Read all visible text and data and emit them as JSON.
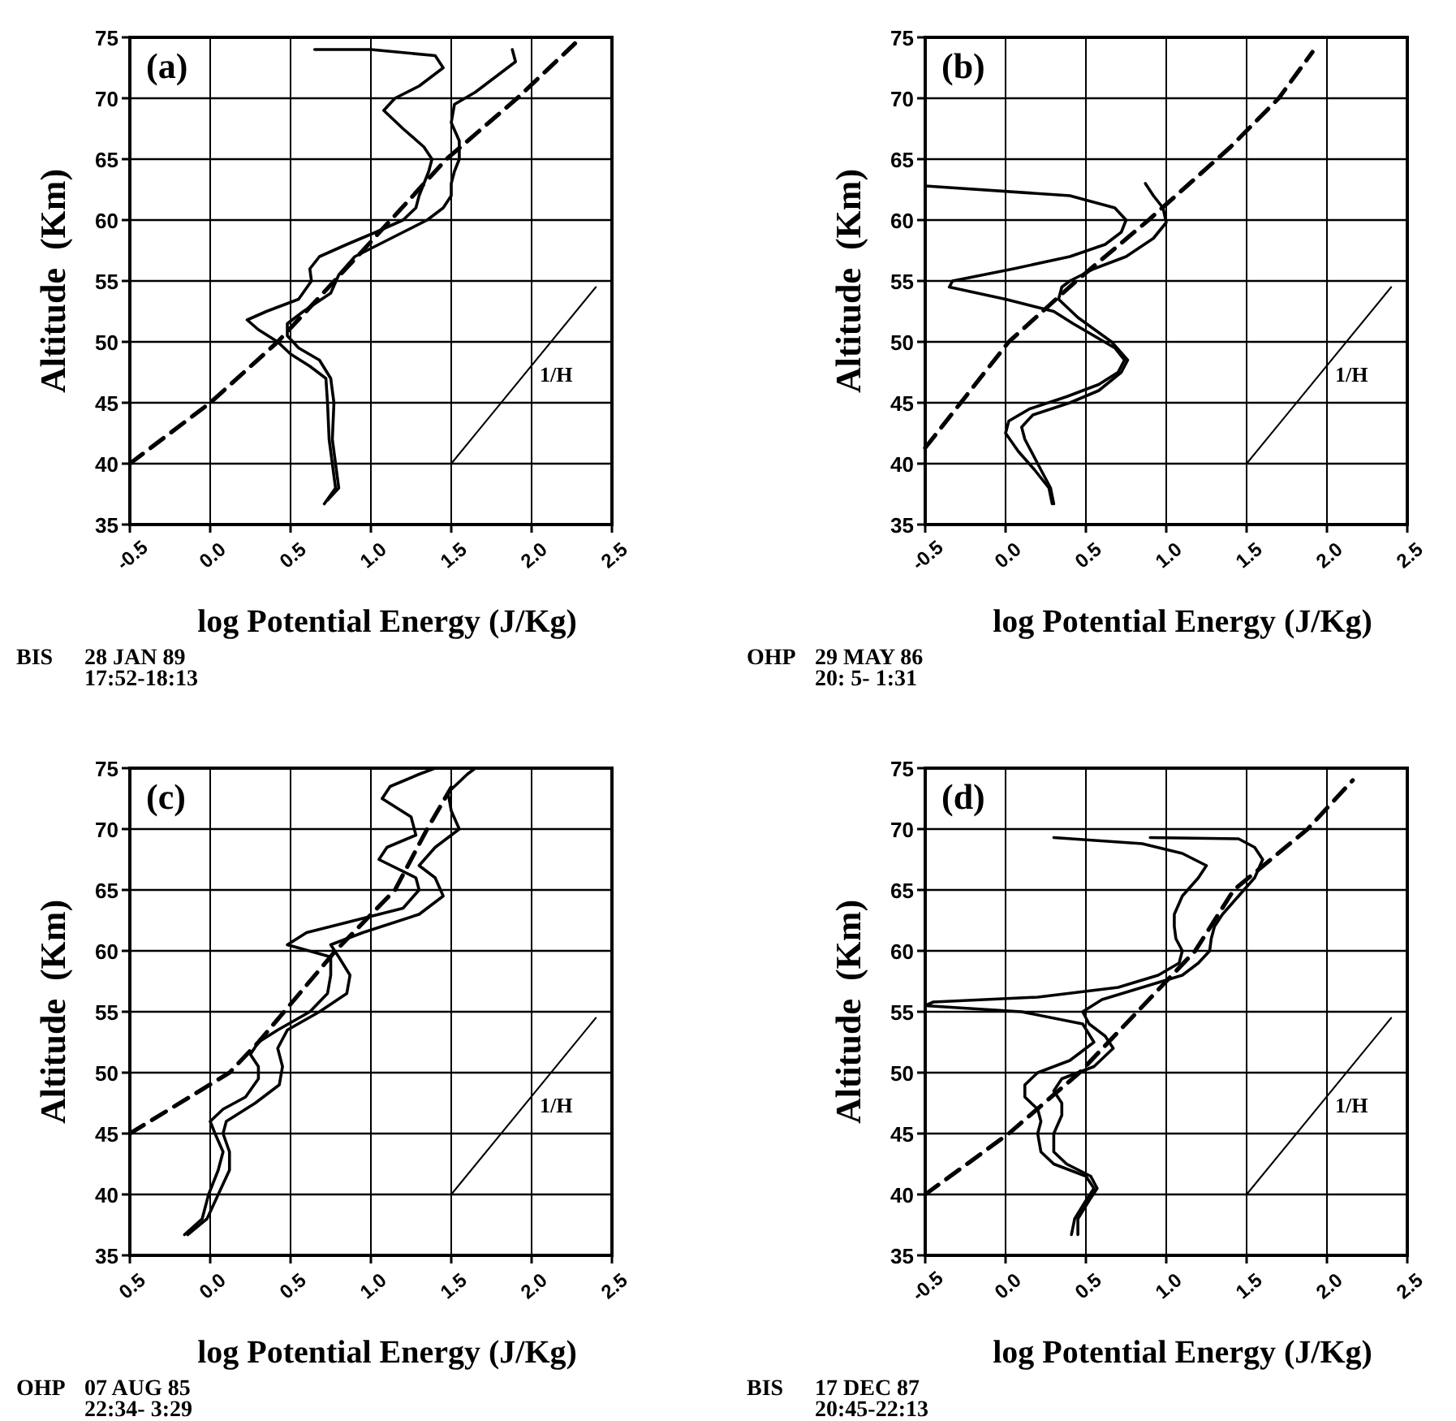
{
  "chart_data": [
    {
      "type": "line",
      "title": "(a)",
      "xlabel": "log Potential Energy (J/Kg)",
      "ylabel": "Altitude  (Km)",
      "xlim": [
        -0.5,
        2.5
      ],
      "ylim": [
        35,
        75
      ],
      "xticks": [
        -0.5,
        {
          "value": 0,
          "label": "0.0"
        },
        0.5,
        {
          "value": 1,
          "label": "1.0"
        },
        1.5,
        {
          "value": 2,
          "label": "2.0"
        },
        2.5
      ],
      "yticks": [
        35,
        40,
        45,
        50,
        55,
        60,
        65,
        70,
        75
      ],
      "grid": true,
      "annotations": [
        "BIS",
        "28 JAN 89",
        "17:52-18:13"
      ],
      "series": [
        {
          "color": "#000000",
          "line_style": "solid",
          "x": [
            0.71,
            0.78,
            0.76,
            0.74,
            0.73,
            0.72,
            0.62,
            0.5,
            0.42,
            0.3,
            0.23,
            0.35,
            0.55,
            0.63,
            0.62,
            0.68,
            0.85,
            1.03,
            1.2,
            1.28,
            1.3,
            1.33,
            1.36,
            1.38,
            1.33,
            1.2,
            1.08,
            1.15,
            1.3,
            1.45,
            1.4,
            1.0,
            0.65
          ],
          "values": [
            36.7,
            38,
            40,
            42,
            45,
            47,
            48,
            49,
            50,
            51,
            51.8,
            52.5,
            53.5,
            55,
            56,
            57,
            58,
            59,
            60,
            61,
            62,
            63,
            64,
            65,
            66,
            67.5,
            69,
            70,
            71,
            72.5,
            73.5,
            74,
            74
          ]
        },
        {
          "color": "#000000",
          "line_style": "solid",
          "x": [
            0.73,
            0.8,
            0.78,
            0.76,
            0.77,
            0.75,
            0.68,
            0.55,
            0.48,
            0.48,
            0.58,
            0.75,
            0.8,
            0.9,
            1.05,
            1.2,
            1.35,
            1.45,
            1.5,
            1.5,
            1.52,
            1.55,
            1.55,
            1.5,
            1.52,
            1.65,
            1.8,
            1.9,
            1.88
          ],
          "values": [
            37,
            38,
            40,
            42,
            45,
            47,
            48.5,
            49.5,
            50.5,
            51.5,
            52.5,
            54,
            55.5,
            57,
            58,
            59,
            60,
            61,
            62,
            63,
            64,
            65,
            66.5,
            68,
            69.5,
            70.5,
            72,
            73,
            74
          ]
        },
        {
          "color": "#000000",
          "line_style": "dashed",
          "x": [
            -0.5,
            0.0,
            0.42,
            0.95,
            1.47,
            1.91,
            2.27
          ],
          "values": [
            40,
            45,
            50,
            57.5,
            65,
            70,
            74.5
          ]
        },
        {
          "name": "1/H",
          "color": "#000000",
          "line_style": "solid",
          "x": [
            1.5,
            2.4
          ],
          "values": [
            40,
            54.5
          ]
        }
      ]
    },
    {
      "type": "line",
      "title": "(b)",
      "xlabel": "log Potential Energy (J/Kg)",
      "ylabel": "Altitude  (Km)",
      "xlim": [
        -0.5,
        2.5
      ],
      "ylim": [
        35,
        75
      ],
      "xticks": [
        -0.5,
        {
          "value": 0,
          "label": "0.0"
        },
        0.5,
        {
          "value": 1,
          "label": "1.0"
        },
        1.5,
        {
          "value": 2,
          "label": "2.0"
        },
        2.5
      ],
      "yticks": [
        35,
        40,
        45,
        50,
        55,
        60,
        65,
        70,
        75
      ],
      "grid": true,
      "annotations": [
        "OHP",
        "29 MAY 86",
        "20: 5- 1:31"
      ],
      "series": [
        {
          "color": "#000000",
          "line_style": "solid",
          "x": [
            0.29,
            0.27,
            0.18,
            0.08,
            0.0,
            0.02,
            0.15,
            0.38,
            0.58,
            0.7,
            0.74,
            0.68,
            0.55,
            0.42,
            0.3,
            0.0,
            -0.35,
            -0.33,
            0.05,
            0.4,
            0.62,
            0.72,
            0.75,
            0.68,
            0.4,
            -0.5
          ],
          "values": [
            36.7,
            38,
            39.5,
            41,
            42.5,
            43.5,
            44.5,
            45.5,
            46.5,
            47.5,
            48.5,
            49.5,
            50.5,
            51.5,
            52.5,
            53.5,
            54.5,
            55,
            56,
            57,
            58,
            59,
            60,
            61,
            62,
            62.8
          ]
        },
        {
          "color": "#000000",
          "line_style": "solid",
          "x": [
            0.3,
            0.28,
            0.2,
            0.12,
            0.1,
            0.17,
            0.4,
            0.58,
            0.72,
            0.76,
            0.66,
            0.45,
            0.33,
            0.35,
            0.4,
            0.55,
            0.75,
            0.92,
            1.0,
            0.98,
            0.92,
            0.87
          ],
          "values": [
            36.7,
            38,
            40,
            42,
            43,
            44,
            45,
            46,
            47.5,
            48.5,
            50,
            52,
            53.5,
            54.5,
            55,
            56,
            57,
            58.5,
            59.8,
            61,
            62,
            63
          ]
        },
        {
          "color": "#000000",
          "line_style": "dashed",
          "x": [
            -0.5,
            0.02,
            0.44,
            0.89,
            1.4,
            1.7,
            1.91
          ],
          "values": [
            41.3,
            50,
            55,
            60,
            66,
            70,
            73.8
          ]
        },
        {
          "name": "1/H",
          "color": "#000000",
          "line_style": "solid",
          "x": [
            1.5,
            2.4
          ],
          "values": [
            40,
            54.5
          ]
        }
      ]
    },
    {
      "type": "line",
      "title": "(c)",
      "xlabel": "log Potential Energy (J/Kg)",
      "ylabel": "Altitude  (Km)",
      "xlim": [
        -0.5,
        2.5
      ],
      "ylim": [
        35,
        75
      ],
      "xticks": [
        {
          "value": -0.5,
          "label": "0.5"
        },
        {
          "value": 0,
          "label": "0.0"
        },
        0.5,
        {
          "value": 1,
          "label": "1.0"
        },
        1.5,
        {
          "value": 2,
          "label": "2.0"
        },
        2.5
      ],
      "yticks": [
        35,
        40,
        45,
        50,
        55,
        60,
        65,
        70,
        75
      ],
      "grid": true,
      "annotations": [
        "OHP",
        "07 AUG 85",
        "22:34- 3:29"
      ],
      "series": [
        {
          "color": "#000000",
          "line_style": "solid",
          "x": [
            -0.16,
            -0.05,
            -0.01,
            0.05,
            0.08,
            0.03,
            0.0,
            0.08,
            0.22,
            0.3,
            0.3,
            0.25,
            0.3,
            0.42,
            0.62,
            0.73,
            0.75,
            0.75,
            0.48,
            0.6,
            0.9,
            1.2,
            1.3,
            1.28,
            1.05,
            1.1,
            1.28,
            1.25,
            1.07,
            1.12,
            1.3,
            1.4
          ],
          "values": [
            36.7,
            38,
            40,
            42,
            43.5,
            45,
            46,
            47,
            48,
            49.5,
            50.5,
            51.5,
            52.5,
            53.5,
            55,
            56.5,
            58,
            59.5,
            60.5,
            61.5,
            62.5,
            63.5,
            65,
            66,
            67.5,
            68.5,
            69.5,
            71,
            72.5,
            73.5,
            74.5,
            75
          ]
        },
        {
          "color": "#000000",
          "line_style": "solid",
          "x": [
            -0.14,
            -0.02,
            0.05,
            0.12,
            0.12,
            0.08,
            0.1,
            0.28,
            0.43,
            0.45,
            0.42,
            0.48,
            0.68,
            0.85,
            0.87,
            0.8,
            0.75,
            0.95,
            1.3,
            1.45,
            1.4,
            1.3,
            1.4,
            1.55,
            1.5,
            1.48,
            1.6,
            1.65
          ],
          "values": [
            36.7,
            38,
            40,
            42,
            43.5,
            45,
            46,
            47.5,
            49,
            50.5,
            52,
            53.5,
            55,
            56.5,
            58,
            59.5,
            60.5,
            61.5,
            63,
            64.5,
            66,
            67,
            68.5,
            70,
            71.5,
            73,
            74.5,
            75
          ]
        },
        {
          "color": "#000000",
          "line_style": "dashed",
          "x": [
            -0.5,
            0.12,
            0.3,
            0.78,
            1.15,
            1.35,
            1.5
          ],
          "values": [
            45,
            50,
            52.5,
            60,
            65,
            70,
            73.4
          ]
        },
        {
          "name": "1/H",
          "color": "#000000",
          "line_style": "solid",
          "x": [
            1.5,
            2.4
          ],
          "values": [
            40,
            54.5
          ]
        }
      ]
    },
    {
      "type": "line",
      "title": "(d)",
      "xlabel": "log Potential Energy (J/Kg)",
      "ylabel": "Altitude  (Km)",
      "xlim": [
        -0.5,
        2.5
      ],
      "ylim": [
        35,
        75
      ],
      "xticks": [
        -0.5,
        {
          "value": 0,
          "label": "0.0"
        },
        0.5,
        {
          "value": 1,
          "label": "1.0"
        },
        1.5,
        {
          "value": 2,
          "label": "2.0"
        },
        2.5
      ],
      "yticks": [
        35,
        40,
        45,
        50,
        55,
        60,
        65,
        70,
        75
      ],
      "grid": true,
      "annotations": [
        "BIS",
        "17 DEC 87",
        "20:45-22:13"
      ],
      "series": [
        {
          "color": "#000000",
          "line_style": "solid",
          "x": [
            0.41,
            0.43,
            0.5,
            0.55,
            0.5,
            0.3,
            0.22,
            0.2,
            0.22,
            0.2,
            0.12,
            0.12,
            0.2,
            0.4,
            0.55,
            0.48,
            0.1,
            -0.5,
            -0.45,
            0.2,
            0.7,
            0.95,
            1.08,
            1.1,
            1.06,
            1.05,
            1.05,
            1.1,
            1.2,
            1.25,
            1.1,
            0.85,
            0.3
          ],
          "values": [
            36.7,
            38,
            39.5,
            40.5,
            41.5,
            42.5,
            43.5,
            45,
            46,
            47,
            48,
            49,
            50,
            51,
            52.5,
            54,
            55,
            55.5,
            55.8,
            56.2,
            57,
            58,
            59,
            60,
            61,
            62,
            63,
            64.5,
            66,
            67,
            68,
            68.8,
            69.3
          ]
        },
        {
          "color": "#000000",
          "line_style": "solid",
          "x": [
            0.45,
            0.45,
            0.52,
            0.57,
            0.53,
            0.38,
            0.3,
            0.3,
            0.35,
            0.35,
            0.3,
            0.35,
            0.55,
            0.67,
            0.62,
            0.52,
            0.48,
            0.6,
            0.85,
            1.1,
            1.2,
            1.27,
            1.28,
            1.3,
            1.35,
            1.45,
            1.55,
            1.6,
            1.55,
            1.45,
            0.9
          ],
          "values": [
            36.7,
            38,
            39.5,
            40.5,
            41.5,
            42.5,
            43.5,
            45,
            46.5,
            47.5,
            48.5,
            49.5,
            50.5,
            52,
            53,
            54,
            55,
            56,
            57,
            58,
            59,
            60,
            61,
            62,
            63,
            64.5,
            66,
            67.5,
            68.5,
            69.2,
            69.3
          ]
        },
        {
          "color": "#000000",
          "line_style": "dashed",
          "x": [
            -0.5,
            0.02,
            0.46,
            0.82,
            1.18,
            1.42,
            1.88,
            2.16
          ],
          "values": [
            40,
            45,
            50,
            55,
            60,
            65,
            70,
            74
          ]
        },
        {
          "name": "1/H",
          "color": "#000000",
          "line_style": "solid",
          "x": [
            1.5,
            2.4
          ],
          "values": [
            40,
            54.5
          ]
        }
      ]
    }
  ]
}
